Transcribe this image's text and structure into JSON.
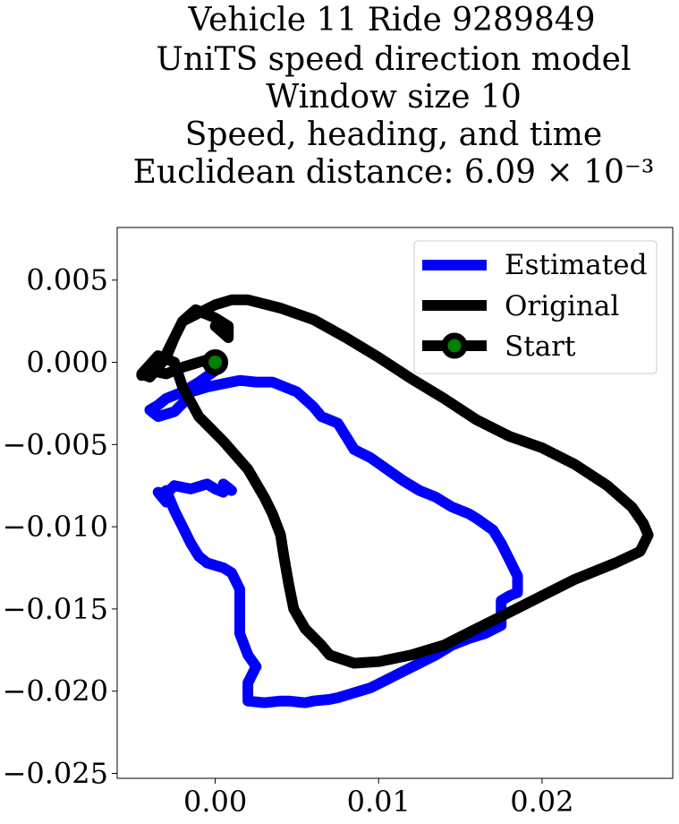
{
  "chart_data": {
    "type": "line",
    "title_lines": [
      "Vehicle 11 Ride 9289849",
      "UniTS speed direction model",
      "Window size 10",
      "Speed, heading, and time",
      "Euclidean distance: 6.09 × 10⁻³"
    ],
    "xlabel": "",
    "ylabel": "",
    "xlim": [
      -0.006,
      0.028
    ],
    "ylim": [
      -0.0253,
      0.0082
    ],
    "x_ticks": [
      0.0,
      0.01,
      0.02
    ],
    "x_tick_labels": [
      "0.00",
      "0.01",
      "0.02"
    ],
    "y_ticks": [
      0.005,
      0.0,
      -0.005,
      -0.01,
      -0.015,
      -0.02,
      -0.025
    ],
    "y_tick_labels": [
      "0.005",
      "0.000",
      "−0.005",
      "−0.010",
      "−0.015",
      "−0.020",
      "−0.025"
    ],
    "grid": false,
    "legend_position": "upper right",
    "legend_entries": [
      "Estimated",
      "Original",
      "Start"
    ],
    "series": [
      {
        "name": "Estimated",
        "color": "#0000ff",
        "x": [
          0.0,
          -0.001,
          -0.002,
          -0.003,
          -0.0035,
          -0.004,
          -0.0035,
          -0.0025,
          -0.002,
          -0.0015,
          -0.0005,
          0.0005,
          0.0015,
          0.0025,
          0.0035,
          0.0045,
          0.005,
          0.006,
          0.0065,
          0.0075,
          0.008,
          0.0085,
          0.0095,
          0.0105,
          0.0115,
          0.0125,
          0.0135,
          0.0145,
          0.0155,
          0.016,
          0.017,
          0.0175,
          0.018,
          0.0185,
          0.0185,
          0.018,
          0.0175,
          0.0175,
          0.0165,
          0.0155,
          0.0145,
          0.0135,
          0.0125,
          0.0115,
          0.0105,
          0.0095,
          0.0085,
          0.0075,
          0.007,
          0.006,
          0.0055,
          0.0045,
          0.004,
          0.003,
          0.002,
          0.002,
          0.0025,
          0.002,
          0.0015,
          0.0015,
          0.0015,
          0.001,
          0.0005,
          -0.0005,
          -0.001,
          -0.0015,
          -0.002,
          -0.0025,
          -0.003,
          -0.003,
          -0.0035,
          -0.003,
          -0.0025,
          -0.0015,
          -0.0005,
          0.0,
          0.0005,
          0.0005,
          0.001
        ],
        "y": [
          -0.0005,
          -0.0012,
          -0.0018,
          -0.0022,
          -0.0026,
          -0.0029,
          -0.0033,
          -0.003,
          -0.0025,
          -0.0018,
          -0.0015,
          -0.0013,
          -0.0011,
          -0.0012,
          -0.0012,
          -0.0016,
          -0.0018,
          -0.0027,
          -0.0033,
          -0.0037,
          -0.0045,
          -0.0053,
          -0.0058,
          -0.0065,
          -0.0072,
          -0.0078,
          -0.0082,
          -0.0088,
          -0.0092,
          -0.0095,
          -0.0102,
          -0.011,
          -0.012,
          -0.013,
          -0.014,
          -0.0142,
          -0.0145,
          -0.016,
          -0.0165,
          -0.0168,
          -0.0172,
          -0.0178,
          -0.0183,
          -0.0188,
          -0.0193,
          -0.0198,
          -0.0201,
          -0.0204,
          -0.0205,
          -0.0206,
          -0.0207,
          -0.0206,
          -0.0206,
          -0.0207,
          -0.0206,
          -0.0195,
          -0.0185,
          -0.0178,
          -0.0165,
          -0.015,
          -0.0138,
          -0.0128,
          -0.0125,
          -0.0122,
          -0.0118,
          -0.011,
          -0.01,
          -0.009,
          -0.0078,
          -0.0085,
          -0.0079,
          -0.008,
          -0.0075,
          -0.0077,
          -0.0074,
          -0.0077,
          -0.0079,
          -0.0074,
          -0.0078
        ]
      },
      {
        "name": "Original",
        "color": "#000000",
        "x": [
          0.0,
          -0.001,
          -0.002,
          -0.003,
          -0.004,
          -0.0045,
          -0.0035,
          -0.003,
          -0.0025,
          -0.002,
          -0.001,
          0.0,
          0.001,
          0.002,
          0.004,
          0.006,
          0.008,
          0.01,
          0.012,
          0.014,
          0.016,
          0.018,
          0.02,
          0.022,
          0.024,
          0.0255,
          0.0262,
          0.0265,
          0.026,
          0.0245,
          0.022,
          0.02,
          0.018,
          0.016,
          0.014,
          0.012,
          0.01,
          0.0085,
          0.007,
          0.0065,
          0.0055,
          0.0048,
          0.0045,
          0.0042,
          0.004,
          0.0035,
          0.003,
          0.002,
          0.0005,
          -0.001,
          -0.002,
          -0.0025,
          -0.0035,
          -0.0045,
          -0.004,
          -0.003,
          -0.0025,
          -0.002,
          -0.0012,
          0.0,
          0.0008,
          0.0008,
          0.0
        ],
        "y": [
          0.0003,
          0.0,
          -0.0003,
          -0.0007,
          -0.0005,
          -0.0008,
          -0.0002,
          0.0005,
          0.0015,
          0.0025,
          0.003,
          0.0035,
          0.0038,
          0.0038,
          0.0033,
          0.0026,
          0.0015,
          0.0003,
          -0.001,
          -0.0022,
          -0.0035,
          -0.0045,
          -0.0052,
          -0.0062,
          -0.0075,
          -0.0088,
          -0.0098,
          -0.0105,
          -0.0115,
          -0.0122,
          -0.0132,
          -0.0142,
          -0.0152,
          -0.0162,
          -0.0172,
          -0.0178,
          -0.0182,
          -0.0183,
          -0.0178,
          -0.0172,
          -0.0162,
          -0.015,
          -0.0135,
          -0.0118,
          -0.0105,
          -0.0092,
          -0.0082,
          -0.0065,
          -0.0048,
          -0.0033,
          -0.0015,
          0.0,
          0.0004,
          -0.0007,
          -0.0009,
          0.0003,
          0.0015,
          0.0025,
          0.0032,
          0.0027,
          0.0022,
          0.0015,
          0.0022
        ]
      }
    ],
    "start_marker": {
      "name": "Start",
      "x": 0.0,
      "y": 0.0,
      "fill_color": "#008000",
      "edge_color": "#000000"
    }
  }
}
